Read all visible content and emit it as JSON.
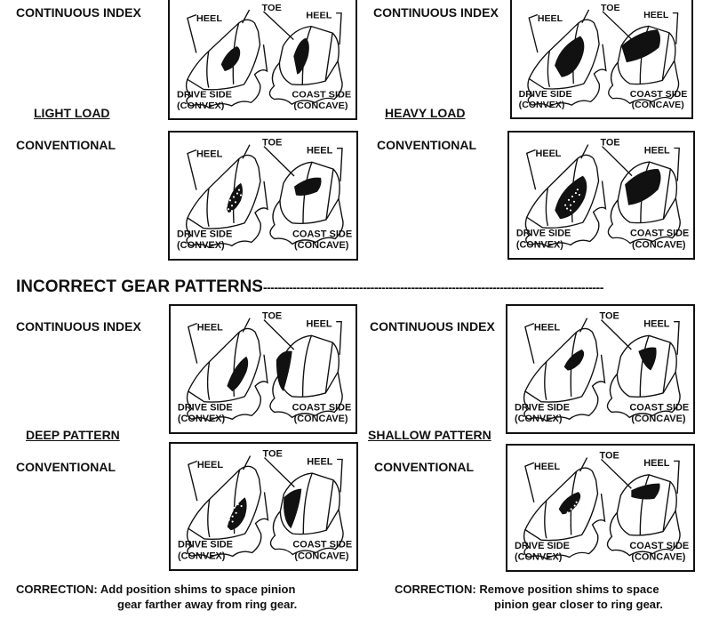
{
  "labels": {
    "heel": "HEEL",
    "toe": "TOE",
    "drive_side": "DRIVE SIDE",
    "drive_convex": "(CONVEX)",
    "coast_side": "COAST SIDE",
    "coast_concave": "(CONCAVE)"
  },
  "section_title": "INCORRECT GEAR PATTERNS",
  "section_rule": "--------------------------------------------------------------------------------------------",
  "panels": [
    {
      "type": "CONTINUOUS INDEX",
      "category": ""
    },
    {
      "type": "CONTINUOUS INDEX",
      "category": ""
    },
    {
      "type": "CONVENTIONAL",
      "category": "LIGHT LOAD"
    },
    {
      "type": "CONVENTIONAL",
      "category": "HEAVY LOAD"
    },
    {
      "type": "CONTINUOUS INDEX",
      "category": ""
    },
    {
      "type": "CONTINUOUS INDEX",
      "category": ""
    },
    {
      "type": "CONVENTIONAL",
      "category": "DEEP PATTERN"
    },
    {
      "type": "CONVENTIONAL",
      "category": "SHALLOW PATTERN"
    }
  ],
  "corrections": {
    "left_label": "CORRECTION:",
    "left_line1": "Add position shims to space pinion",
    "left_line2": "gear farther away from ring gear.",
    "right_label": "CORRECTION:",
    "right_line1": "Remove position shims to space",
    "right_line2": "pinion gear closer to ring gear."
  }
}
